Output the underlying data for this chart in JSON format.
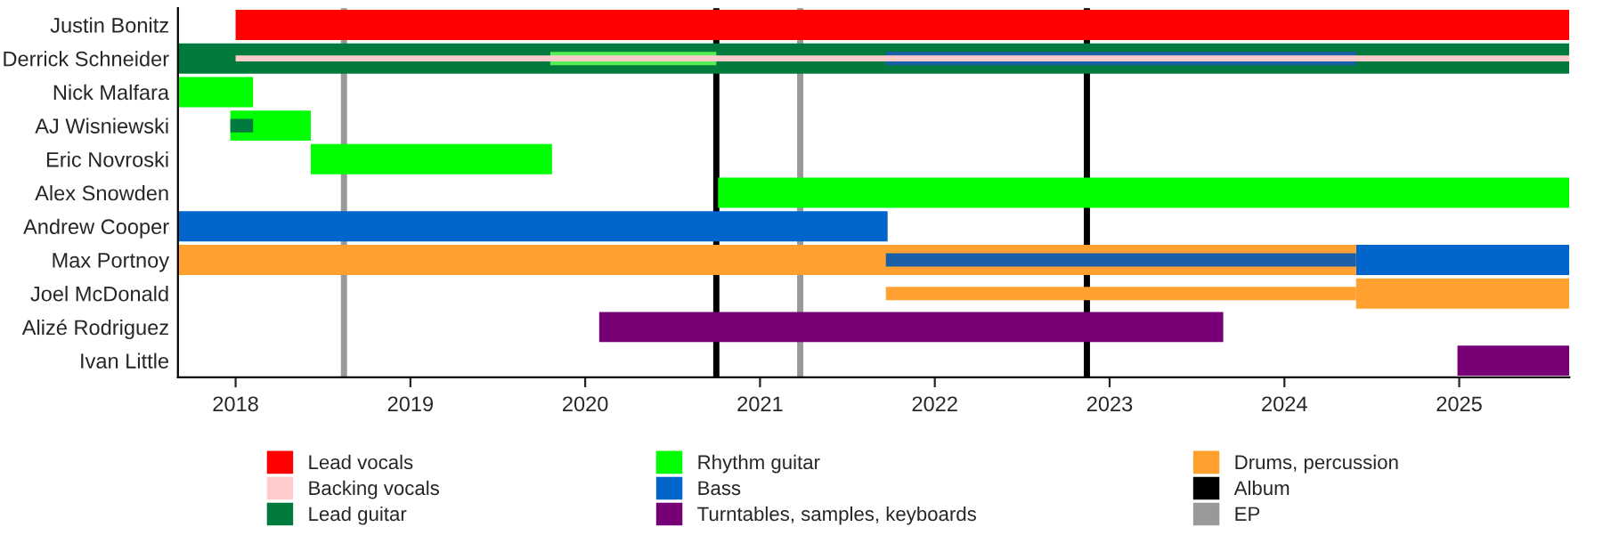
{
  "chart_data": {
    "type": "bar",
    "orientation": "horizontal",
    "categories": [
      "Justin Bonitz",
      "Derrick Schneider",
      "Nick Malfara",
      "AJ Wisniewski",
      "Eric Novroski",
      "Alex Snowden",
      "Andrew Cooper",
      "Max Portnoy",
      "Joel McDonald",
      "Alizé Rodriguez",
      "Ivan Little"
    ],
    "series": [
      {
        "name": "Lead vocals",
        "color": "#ff0000",
        "base": [
          2018.0,
          null,
          null,
          null,
          null,
          null,
          null,
          null,
          null,
          null,
          null
        ],
        "values": [
          7.63,
          null,
          null,
          null,
          null,
          null,
          null,
          null,
          null,
          null,
          null
        ]
      },
      {
        "name": "Backing vocals",
        "color": "#ffcccc",
        "base": [
          null,
          2018.0,
          null,
          null,
          null,
          null,
          null,
          null,
          null,
          null,
          null
        ],
        "values": [
          null,
          7.63,
          null,
          null,
          null,
          null,
          null,
          null,
          null,
          null,
          null
        ]
      },
      {
        "name": "Lead guitar",
        "color": "#007a3d",
        "base": [
          null,
          2017.67,
          null,
          null,
          null,
          null,
          null,
          null,
          null,
          null,
          null
        ],
        "values": [
          null,
          7.96,
          null,
          null,
          null,
          null,
          null,
          null,
          null,
          null,
          null
        ]
      },
      {
        "name": "Rhythm guitar",
        "color": "#00ff00",
        "base": [
          null,
          null,
          2017.67,
          2017.97,
          2018.43,
          2020.76,
          null,
          null,
          null,
          null,
          null
        ],
        "values": [
          null,
          null,
          0.43,
          0.46,
          1.38,
          4.87,
          null,
          null,
          null,
          null,
          null
        ]
      },
      {
        "name": "Bass",
        "color": "#0066cc",
        "base": [
          null,
          null,
          null,
          null,
          null,
          null,
          2017.67,
          2024.41,
          null,
          null,
          null
        ],
        "values": [
          null,
          null,
          null,
          null,
          null,
          null,
          4.06,
          1.22,
          null,
          null,
          null
        ]
      },
      {
        "name": "Turntables, samples, keyboards",
        "color": "#770077",
        "base": [
          null,
          null,
          null,
          null,
          null,
          null,
          null,
          null,
          null,
          2020.08,
          2024.99
        ],
        "values": [
          null,
          null,
          null,
          null,
          null,
          null,
          null,
          null,
          null,
          3.57,
          0.64
        ]
      },
      {
        "name": "Drums, percussion",
        "color": "#ffa02f",
        "base": [
          null,
          null,
          null,
          null,
          null,
          null,
          null,
          2017.67,
          2024.41,
          null,
          null
        ],
        "values": [
          null,
          null,
          null,
          null,
          null,
          null,
          null,
          6.74,
          1.22,
          null,
          null
        ]
      },
      {
        "color": "#55ee55",
        "base": [
          null,
          2019.8,
          null,
          null,
          null,
          null,
          null,
          null,
          null,
          null,
          null
        ],
        "values": [
          null,
          0.95,
          null,
          null,
          null,
          null,
          null,
          null,
          null,
          null,
          null
        ]
      },
      {
        "color": "#1a5fa8",
        "base": [
          null,
          2021.72,
          null,
          null,
          null,
          null,
          null,
          2021.72,
          null,
          null,
          null
        ],
        "values": [
          null,
          2.69,
          null,
          null,
          null,
          null,
          null,
          2.69,
          null,
          null,
          null
        ]
      },
      {
        "color": "#ffa02f",
        "base": [
          null,
          null,
          null,
          null,
          null,
          null,
          null,
          null,
          2021.72,
          null,
          null
        ],
        "values": [
          null,
          null,
          null,
          null,
          null,
          null,
          null,
          null,
          2.69,
          null,
          null
        ]
      },
      {
        "color": "#007a3d",
        "base": [
          null,
          null,
          null,
          2017.97,
          null,
          null,
          null,
          null,
          null,
          null,
          null
        ],
        "values": [
          null,
          null,
          null,
          0.13,
          null,
          null,
          null,
          null,
          null,
          null,
          null
        ]
      }
    ],
    "ref_lines": [
      {
        "axis": "x",
        "value": 2020.75,
        "label": "Album",
        "color": "#000000"
      },
      {
        "axis": "x",
        "value": 2018.62,
        "label": "EP",
        "color": "#999999"
      },
      {
        "axis": "x",
        "value": 2021.23,
        "color": "#999999"
      },
      {
        "axis": "x",
        "value": 2022.87,
        "color": "#000000"
      }
    ],
    "xlim": [
      2017.67,
      2025.63
    ],
    "xticks": [
      2018,
      2019,
      2020,
      2021,
      2022,
      2023,
      2024,
      2025
    ],
    "grid": false,
    "legend": "bottom"
  }
}
